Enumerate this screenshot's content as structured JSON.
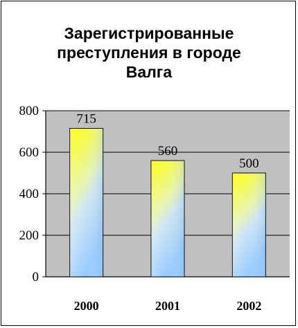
{
  "chart_data": {
    "type": "bar",
    "title": "Зарегистрированные\nпреступления в городе\nВалга",
    "categories": [
      "2000",
      "2001",
      "2002"
    ],
    "values": [
      715,
      560,
      500
    ],
    "data_labels": [
      "715",
      "560",
      "500"
    ],
    "ylim": [
      0,
      800
    ],
    "yticks": [
      "0",
      "200",
      "400",
      "600",
      "800"
    ],
    "ytick_values": [
      0,
      200,
      400,
      600,
      800
    ],
    "xlabel": "",
    "ylabel": "",
    "grid": true,
    "legend": "none",
    "colors": {
      "plot_background": "#c0c0c0",
      "bar_gradient_top": "#ffff00",
      "bar_gradient_bottom": "#99ccff",
      "gridline": "#000000"
    }
  }
}
